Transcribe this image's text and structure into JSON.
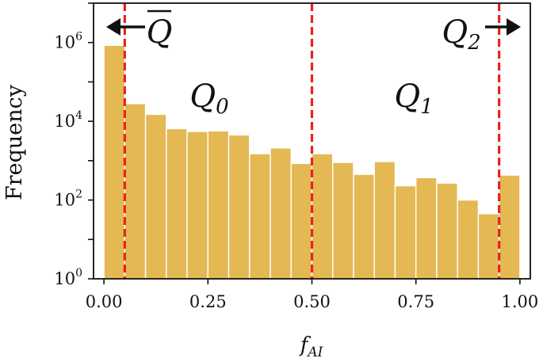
{
  "chart_data": {
    "type": "bar",
    "subtype": "histogram",
    "xlabel": {
      "base": "f",
      "sub": "AI"
    },
    "ylabel": "Frequency",
    "x_range": [
      0,
      1
    ],
    "y_scale": "log",
    "y_range": [
      1,
      10000000
    ],
    "x_ticks": [
      0.0,
      0.25,
      0.5,
      0.75,
      1.0
    ],
    "x_tick_labels": [
      "0.00",
      "0.25",
      "0.50",
      "0.75",
      "1.00"
    ],
    "y_ticks": [
      {
        "value": 1,
        "base": "10",
        "exp": "0"
      },
      {
        "value": 100,
        "base": "10",
        "exp": "2"
      },
      {
        "value": 10000,
        "base": "10",
        "exp": "4"
      },
      {
        "value": 1000000,
        "base": "10",
        "exp": "6"
      }
    ],
    "bin_width": 0.05,
    "bins": [
      {
        "x0": 0.0,
        "x1": 0.05,
        "count": 850000
      },
      {
        "x0": 0.05,
        "x1": 0.1,
        "count": 28000
      },
      {
        "x0": 0.1,
        "x1": 0.15,
        "count": 15000
      },
      {
        "x0": 0.15,
        "x1": 0.2,
        "count": 6500
      },
      {
        "x0": 0.2,
        "x1": 0.25,
        "count": 5500
      },
      {
        "x0": 0.25,
        "x1": 0.3,
        "count": 5700
      },
      {
        "x0": 0.3,
        "x1": 0.35,
        "count": 4500
      },
      {
        "x0": 0.35,
        "x1": 0.4,
        "count": 1500
      },
      {
        "x0": 0.4,
        "x1": 0.45,
        "count": 2100
      },
      {
        "x0": 0.45,
        "x1": 0.5,
        "count": 850
      },
      {
        "x0": 0.5,
        "x1": 0.55,
        "count": 1500
      },
      {
        "x0": 0.55,
        "x1": 0.6,
        "count": 900
      },
      {
        "x0": 0.6,
        "x1": 0.65,
        "count": 450
      },
      {
        "x0": 0.65,
        "x1": 0.7,
        "count": 950
      },
      {
        "x0": 0.7,
        "x1": 0.75,
        "count": 230
      },
      {
        "x0": 0.75,
        "x1": 0.8,
        "count": 370
      },
      {
        "x0": 0.8,
        "x1": 0.85,
        "count": 270
      },
      {
        "x0": 0.85,
        "x1": 0.9,
        "count": 100
      },
      {
        "x0": 0.9,
        "x1": 0.95,
        "count": 45
      },
      {
        "x0": 0.95,
        "x1": 1.0,
        "count": 430
      }
    ],
    "bar_color": "#E4B953",
    "bar_edge_color": "#ffffff",
    "threshold_lines": [
      {
        "x": 0.05,
        "color": "#E8231E",
        "style": "dashed"
      },
      {
        "x": 0.5,
        "color": "#E8231E",
        "style": "dashed"
      },
      {
        "x": 0.95,
        "color": "#E8231E",
        "style": "dashed"
      }
    ],
    "annotations": [
      {
        "id": "qbar",
        "label": "Q",
        "overline": true,
        "sub": "",
        "arrow": "left"
      },
      {
        "id": "q0",
        "label": "Q",
        "sub": "0",
        "arrow": "none"
      },
      {
        "id": "q1",
        "label": "Q",
        "sub": "1",
        "arrow": "none"
      },
      {
        "id": "q2",
        "label": "Q",
        "sub": "2",
        "arrow": "right"
      }
    ],
    "grid": false,
    "legend": "none"
  }
}
